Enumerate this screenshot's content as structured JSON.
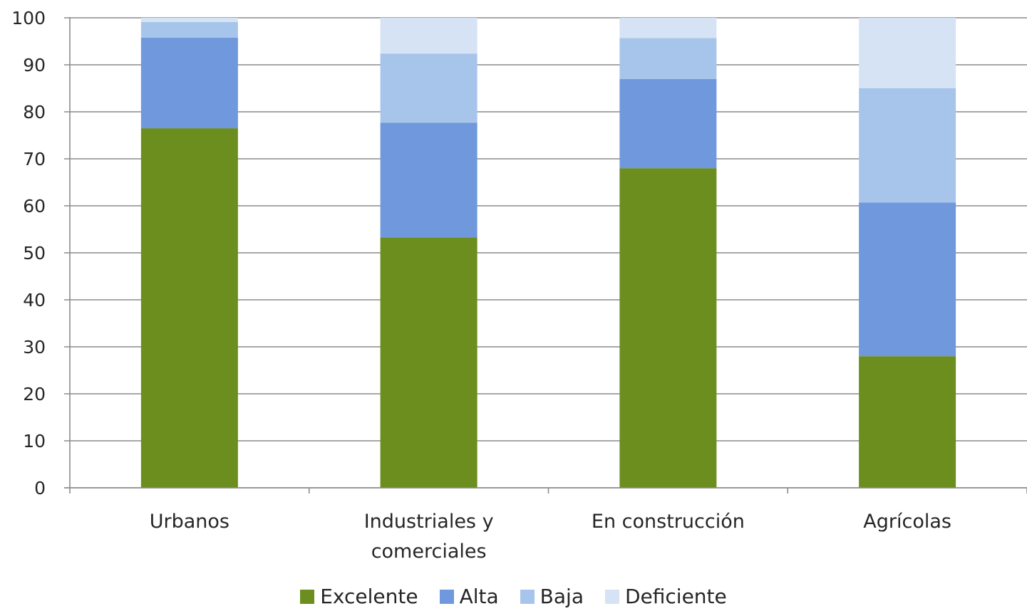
{
  "chart_data": {
    "type": "bar",
    "stacked": true,
    "categories": [
      [
        "Urbanos"
      ],
      [
        "Industriales y",
        "comerciales"
      ],
      [
        "En construcción"
      ],
      [
        "Agrícolas"
      ]
    ],
    "series": [
      {
        "name": "Excelente",
        "color": "#6b8e1f",
        "values": [
          76.5,
          53.3,
          68.0,
          28.0
        ]
      },
      {
        "name": "Alta",
        "color": "#7098dc",
        "values": [
          19.3,
          24.4,
          19.0,
          32.7
        ]
      },
      {
        "name": "Baja",
        "color": "#a7c5ea",
        "values": [
          3.3,
          14.7,
          8.7,
          24.3
        ]
      },
      {
        "name": "Deficiente",
        "color": "#d6e3f4",
        "values": [
          0.9,
          7.6,
          4.3,
          15.0
        ]
      }
    ],
    "ylim": [
      0,
      100
    ],
    "yticks": [
      0,
      10,
      20,
      30,
      40,
      50,
      60,
      70,
      80,
      90,
      100
    ],
    "grid": true,
    "legend_position": "bottom"
  }
}
